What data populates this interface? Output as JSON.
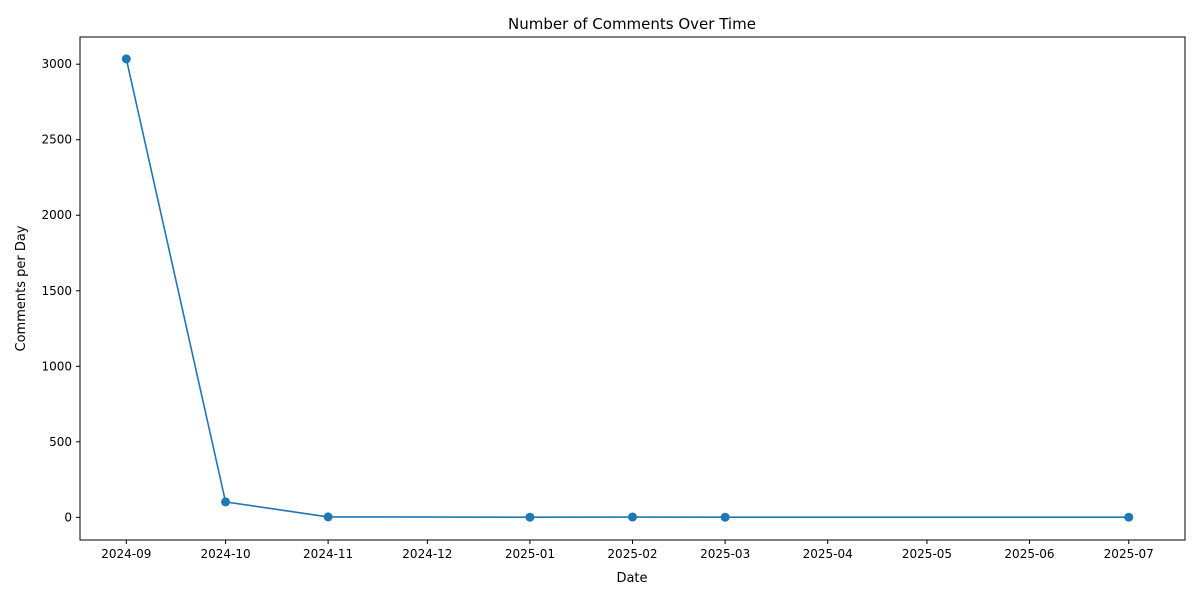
{
  "chart_data": {
    "type": "line",
    "title": "Number of Comments Over Time",
    "xlabel": "Date",
    "ylabel": "Comments per Day",
    "x_axis_type": "date",
    "x_ticks": [
      "2024-09",
      "2024-10",
      "2024-11",
      "2024-12",
      "2025-01",
      "2025-02",
      "2025-03",
      "2025-04",
      "2025-05",
      "2025-06",
      "2025-07"
    ],
    "y_ticks": [
      0,
      500,
      1000,
      1500,
      2000,
      2500,
      3000
    ],
    "xlim": [
      "2024-08-18",
      "2025-07-18"
    ],
    "ylim": [
      -150,
      3180
    ],
    "grid": false,
    "legend": "none",
    "series": [
      {
        "color": "#1f77b4",
        "marker": "circle",
        "x": [
          "2024-09-01",
          "2024-10-01",
          "2024-11-01",
          "2025-01-01",
          "2025-02-01",
          "2025-03-01",
          "2025-07-01"
        ],
        "y": [
          3035,
          102,
          3,
          1,
          2,
          1,
          1
        ]
      }
    ]
  }
}
